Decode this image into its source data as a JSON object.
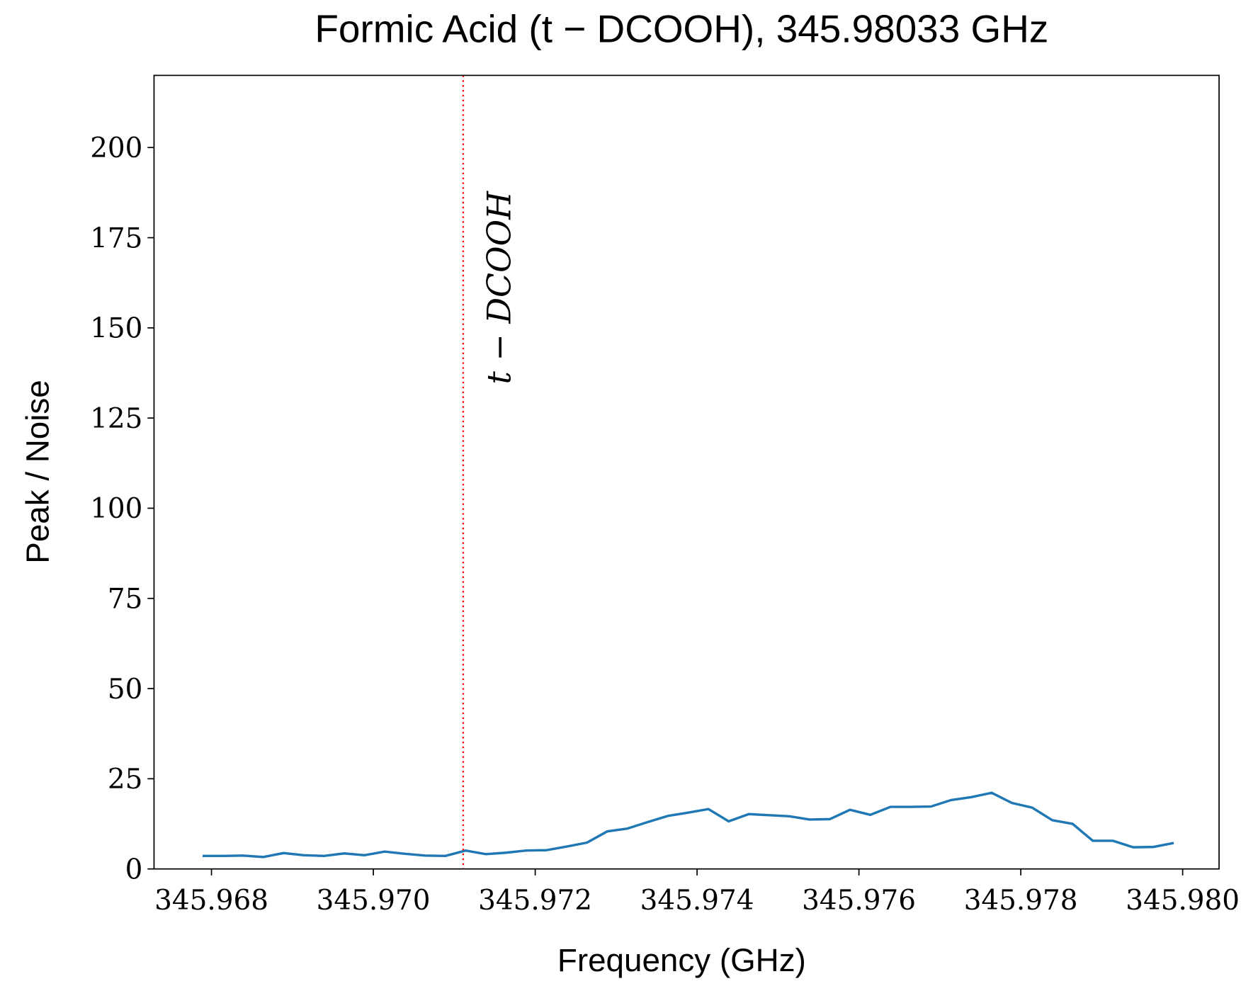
{
  "chart_data": {
    "type": "line",
    "title": "Formic Acid (t − DCOOH), 345.98033 GHz",
    "xlabel": "Frequency (GHz)",
    "ylabel": "Peak / Noise",
    "x": [
      345.96789,
      345.96814,
      345.96839,
      345.96864,
      345.96889,
      345.96914,
      345.96939,
      345.96964,
      345.96989,
      345.97014,
      345.97039,
      345.97064,
      345.97089,
      345.97114,
      345.97139,
      345.97164,
      345.97189,
      345.97214,
      345.97239,
      345.97264,
      345.97289,
      345.97314,
      345.97339,
      345.97364,
      345.97389,
      345.97414,
      345.97439,
      345.97464,
      345.97489,
      345.97514,
      345.97539,
      345.97564,
      345.97589,
      345.97614,
      345.97639,
      345.97664,
      345.97689,
      345.97714,
      345.97739,
      345.97764,
      345.97789,
      345.97814,
      345.97839,
      345.97864,
      345.97889,
      345.97914,
      345.97939,
      345.97964,
      345.97989
    ],
    "series": [
      {
        "name": "Peak / Noise",
        "color": "#1f77b4",
        "values": [
          3.6,
          3.6,
          3.7,
          3.3,
          4.4,
          3.8,
          3.6,
          4.3,
          3.8,
          4.8,
          4.2,
          3.7,
          3.6,
          5.1,
          4.1,
          4.5,
          5.1,
          5.2,
          6.2,
          7.3,
          10.4,
          11.2,
          13.0,
          14.7,
          15.6,
          16.6,
          13.2,
          15.2,
          14.9,
          14.6,
          13.7,
          13.8,
          16.4,
          15.0,
          17.2,
          17.2,
          17.3,
          19.1,
          19.9,
          21.1,
          18.3,
          17.0,
          13.5,
          12.5,
          7.8,
          7.8,
          6.0,
          6.1,
          7.2
        ]
      }
    ],
    "vline": {
      "x": 345.97111,
      "color": "#ff0000",
      "label": "t − DCOOH"
    },
    "xlim": [
      345.96729,
      345.98045
    ],
    "ylim": [
      0,
      220
    ],
    "xticks": [
      345.968,
      {
        "value": 345.97,
        "label": "345.970"
      },
      345.972,
      345.974,
      345.976,
      345.978,
      {
        "value": 345.98,
        "label": "345.980"
      }
    ],
    "yticks": [
      0,
      25,
      50,
      75,
      100,
      125,
      150,
      175,
      200
    ]
  }
}
